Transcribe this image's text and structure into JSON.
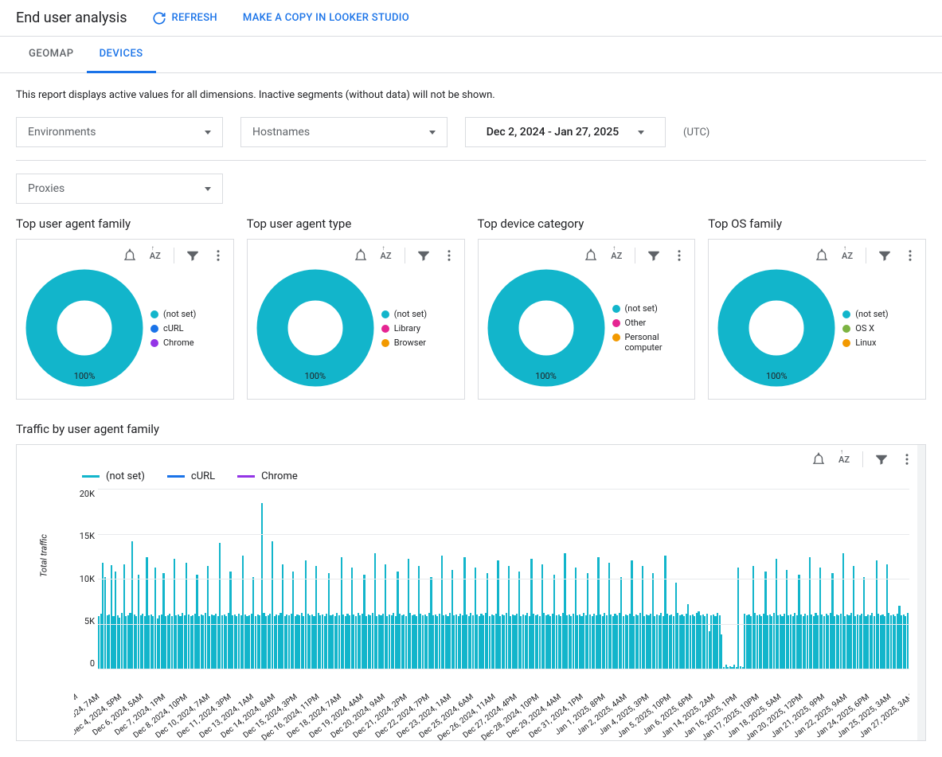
{
  "header": {
    "title": "End user analysis",
    "refresh": "REFRESH",
    "copy": "MAKE A COPY IN LOOKER STUDIO"
  },
  "tabs": {
    "geomap": "GEOMAP",
    "devices": "DEVICES",
    "active": "devices"
  },
  "description": "This report displays active values for all dimensions. Inactive segments (without data) will not be shown.",
  "filters": {
    "environments": "Environments",
    "hostnames": "Hostnames",
    "daterange": "Dec 2, 2024 - Jan 27, 2025",
    "utc": "(UTC)",
    "proxies": "Proxies"
  },
  "colors": {
    "teal": "#12b5cb",
    "blue": "#1a73e8",
    "purple": "#9334e6",
    "pink": "#e52592",
    "orange": "#f29900",
    "green": "#7cb342"
  },
  "donuts": [
    {
      "title": "Top user agent family",
      "pct": "100%",
      "legend": [
        {
          "label": "(not set)",
          "colorKey": "teal"
        },
        {
          "label": "cURL",
          "colorKey": "blue"
        },
        {
          "label": "Chrome",
          "colorKey": "purple"
        }
      ]
    },
    {
      "title": "Top user agent type",
      "pct": "100%",
      "legend": [
        {
          "label": "(not set)",
          "colorKey": "teal"
        },
        {
          "label": "Library",
          "colorKey": "pink"
        },
        {
          "label": "Browser",
          "colorKey": "orange"
        }
      ]
    },
    {
      "title": "Top device category",
      "pct": "100%",
      "legend": [
        {
          "label": "(not set)",
          "colorKey": "teal"
        },
        {
          "label": "Other",
          "colorKey": "pink"
        },
        {
          "label": "Personal computer",
          "colorKey": "orange"
        }
      ]
    },
    {
      "title": "Top OS family",
      "pct": "100%",
      "legend": [
        {
          "label": "(not set)",
          "colorKey": "teal"
        },
        {
          "label": "OS X",
          "colorKey": "green"
        },
        {
          "label": "Linux",
          "colorKey": "orange"
        }
      ]
    }
  ],
  "traffic": {
    "title": "Traffic by user agent family",
    "ylabel": "Total traffic",
    "ymax": 20000,
    "yticks": [
      "20K",
      "15K",
      "10K",
      "5K",
      "0"
    ],
    "legend": [
      {
        "label": "(not set)",
        "colorKey": "teal"
      },
      {
        "label": "cURL",
        "colorKey": "blue"
      },
      {
        "label": "Chrome",
        "colorKey": "purple"
      }
    ],
    "xlabels": [
      "c 2, 2024, 12AM",
      "Dec 3, 2024, 7AM",
      "Dec 4, 2024, 5PM",
      "Dec 6, 2024, 5AM",
      "Dec 7, 2024, 1PM",
      "Dec 8, 2024, 10PM",
      "Dec 10, 2024, 7AM",
      "Dec 11, 2024, 3PM",
      "Dec 13, 2024, 1AM",
      "Dec 14, 2024, 8AM",
      "Dec 15, 2024, 3PM",
      "Dec 16, 2024, 11PM",
      "Dec 18, 2024, 7AM",
      "Dec 19, 2024, 4AM",
      "Dec 20, 2024, 9AM",
      "Dec 21, 2024, 2PM",
      "Dec 22, 2024, 7PM",
      "Dec 23, 2024, 1AM",
      "Dec 25, 2024, 6AM",
      "Dec 26, 2024, 11AM",
      "Dec 27, 2024, 4PM",
      "Dec 28, 2024, 10PM",
      "Dec 29, 2024, 4AM",
      "Dec 31, 2024, 1PM",
      "Jan 1, 2025, 8PM",
      "Jan 2, 2025, 4AM",
      "Jan 4, 2025, 3PM",
      "Jan 5, 2025, 10PM",
      "Jan 6, 2025, 6PM",
      "Jan 14, 2025, 2AM",
      "Jan 16, 2025, 1PM",
      "Jan 17, 2025, 10PM",
      "Jan 18, 2025, 5AM",
      "Jan 20, 2025, 12PM",
      "Jan 21, 2025, 9PM",
      "Jan 22, 2025, 9AM",
      "Jan 24, 2025, 6PM",
      "Jan 25, 2025, 3AM",
      "Jan 27, 2025, 3AM"
    ],
    "series_notset": [
      5800,
      6100,
      11800,
      10200,
      5900,
      6000,
      11500,
      5800,
      10800,
      5900,
      5700,
      6200,
      11600,
      5800,
      5900,
      6200,
      14200,
      6000,
      5800,
      10400,
      5900,
      6100,
      5800,
      12400,
      5900,
      6000,
      5800,
      11200,
      5600,
      5900,
      6000,
      10600,
      5800,
      5900,
      6100,
      5800,
      12200,
      5900,
      6000,
      5800,
      6200,
      5900,
      11800,
      6000,
      5800,
      5900,
      6100,
      10400,
      5800,
      6000,
      5900,
      6200,
      11400,
      5800,
      6000,
      5900,
      6100,
      5800,
      14000,
      5900,
      6000,
      5800,
      6200,
      10800,
      5900,
      6000,
      5800,
      6100,
      5900,
      12600,
      6000,
      5800,
      5900,
      6100,
      10200,
      5800,
      6000,
      5900,
      18400,
      6200,
      5800,
      5900,
      6100,
      14200,
      5800,
      6000,
      5900,
      6200,
      11600,
      5800,
      6000,
      5900,
      6100,
      10800,
      5800,
      6000,
      5900,
      6200,
      5800,
      12000,
      6100,
      5900,
      6000,
      5800,
      11400,
      6200,
      5900,
      6000,
      5800,
      6100,
      10600,
      5900,
      6000,
      5800,
      6200,
      5900,
      12400,
      6000,
      5800,
      6100,
      5900,
      11200,
      6000,
      5800,
      6200,
      5900,
      6100,
      10400,
      5800,
      6000,
      5900,
      6200,
      12800,
      5800,
      6000,
      5900,
      6100,
      11600,
      5800,
      6000,
      5900,
      6200,
      5800,
      10800,
      6100,
      5900,
      6000,
      5800,
      12200,
      6200,
      5900,
      6000,
      5800,
      11400,
      6100,
      5900,
      6000,
      5800,
      6200,
      10200,
      5900,
      6000,
      5800,
      6100,
      12600,
      5900,
      6000,
      5800,
      6200,
      11000,
      5900,
      6000,
      5800,
      6100,
      5900,
      12400,
      6000,
      5800,
      6200,
      5900,
      11200,
      6000,
      5800,
      6100,
      5900,
      6200,
      10600,
      5800,
      6000,
      5900,
      6100,
      12000,
      5800,
      6000,
      5900,
      6200,
      11400,
      5800,
      6000,
      5900,
      6100,
      10800,
      5800,
      6000,
      5900,
      6200,
      5800,
      12200,
      6100,
      5900,
      6000,
      5800,
      11600,
      6200,
      5900,
      6000,
      5800,
      6100,
      10400,
      5900,
      6000,
      5800,
      6200,
      12800,
      5900,
      6000,
      5800,
      6100,
      11200,
      5900,
      6000,
      5800,
      6200,
      5900,
      10600,
      6000,
      5800,
      6100,
      5900,
      12400,
      6000,
      5800,
      6200,
      5900,
      11800,
      6000,
      5800,
      6100,
      5900,
      6200,
      10200,
      5800,
      6000,
      5900,
      6100,
      12000,
      5800,
      6000,
      5900,
      6200,
      11400,
      5800,
      6000,
      5900,
      6100,
      10600,
      5800,
      6000,
      5900,
      6200,
      5800,
      12600,
      6100,
      5900,
      6000,
      5800,
      9600,
      6200,
      5900,
      6000,
      5800,
      6100,
      7200,
      5900,
      6000,
      5800,
      6200,
      6400,
      5900,
      6000,
      5800,
      6100,
      4200,
      5900,
      6000,
      5800,
      6200,
      5900,
      3800,
      200,
      400,
      200,
      300,
      200,
      400,
      200,
      11200,
      300,
      200,
      6100,
      5900,
      6000,
      5800,
      11400,
      6200,
      5900,
      6000,
      5800,
      6100,
      10800,
      5900,
      6000,
      5800,
      6200,
      12200,
      5900,
      6000,
      5800,
      6100,
      11000,
      5900,
      6000,
      5800,
      6200,
      5900,
      10400,
      6000,
      5800,
      6100,
      5900,
      12400,
      6000,
      5800,
      6200,
      5900,
      11200,
      6000,
      5800,
      6100,
      5900,
      6200,
      10600,
      5800,
      6000,
      5900,
      6100,
      12800,
      5800,
      6000,
      5900,
      6200,
      11400,
      5800,
      6000,
      5900,
      6100,
      10200,
      5800,
      6000,
      5900,
      6200,
      5800,
      12000,
      6100,
      5900,
      6000,
      5800,
      11600,
      6200,
      5900,
      6000,
      5800,
      6100,
      7000,
      5900,
      6000,
      5800,
      6200
    ]
  }
}
